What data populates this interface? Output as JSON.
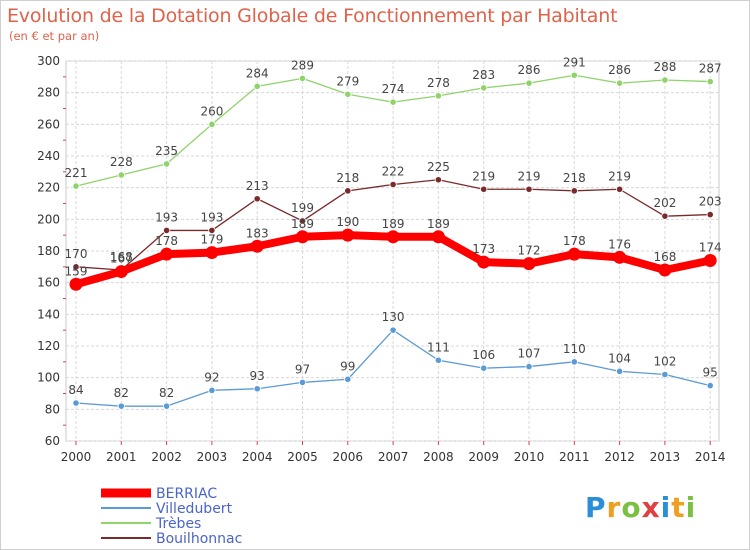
{
  "chart_data": {
    "type": "line",
    "title": "Evolution de la Dotation Globale de Fonctionnement par Habitant",
    "subtitle": "(en € et par an)",
    "xlabel": "",
    "ylabel": "",
    "categories": [
      "2000",
      "2001",
      "2002",
      "2003",
      "2004",
      "2005",
      "2006",
      "2007",
      "2008",
      "2009",
      "2010",
      "2011",
      "2012",
      "2013",
      "2014"
    ],
    "ylim": [
      60,
      300
    ],
    "yticks": [
      60,
      80,
      100,
      120,
      140,
      160,
      180,
      200,
      220,
      240,
      260,
      280,
      300
    ],
    "grid": true,
    "legend_position": "bottom-left",
    "series": [
      {
        "name": "BERRIAC",
        "color": "#ff0000",
        "values": [
          159,
          167,
          178,
          179,
          183,
          189,
          190,
          189,
          189,
          173,
          172,
          178,
          176,
          168,
          174
        ],
        "labels": [
          "159",
          "167",
          "178",
          "179",
          "183",
          "189",
          "190",
          "189",
          "189",
          "173",
          "172",
          "178",
          "176",
          "168",
          "174"
        ]
      },
      {
        "name": "Villedubert",
        "color": "#5b9bd5",
        "values": [
          84,
          82,
          82,
          92,
          93,
          97,
          99,
          130,
          111,
          106,
          107,
          110,
          104,
          102,
          95
        ],
        "labels": [
          "84",
          "82",
          "82",
          "92",
          "93",
          "97",
          "99",
          "130",
          "111",
          "106",
          "107",
          "110",
          "104",
          "102",
          "95"
        ]
      },
      {
        "name": "Trèbes",
        "color": "#8fd36a",
        "values": [
          221,
          228,
          235,
          260,
          284,
          289,
          279,
          274,
          278,
          283,
          286,
          291,
          286,
          288,
          287
        ],
        "labels": [
          "221",
          "228",
          "235",
          "260",
          "284",
          "289",
          "279",
          "274",
          "278",
          "283",
          "286",
          "291",
          "286",
          "288",
          "287"
        ]
      },
      {
        "name": "Bouilhonnac",
        "color": "#7a2a2a",
        "values": [
          170,
          168,
          193,
          193,
          213,
          199,
          218,
          222,
          225,
          219,
          219,
          218,
          219,
          202,
          203
        ],
        "labels": [
          "170",
          "168",
          "193",
          "193",
          "213",
          "199",
          "218",
          "222",
          "225",
          "219",
          "219",
          "218",
          "219",
          "202",
          "203"
        ]
      }
    ]
  },
  "logo": {
    "letters": [
      {
        "ch": "P",
        "color": "#2a8fd8"
      },
      {
        "ch": "r",
        "color": "#f0a020"
      },
      {
        "ch": "o",
        "color": "#7bc043"
      },
      {
        "ch": "x",
        "color": "#e04040"
      },
      {
        "ch": "i",
        "color": "#2a8fd8"
      },
      {
        "ch": "t",
        "color": "#f0a020"
      },
      {
        "ch": "i",
        "color": "#7bc043"
      }
    ]
  }
}
